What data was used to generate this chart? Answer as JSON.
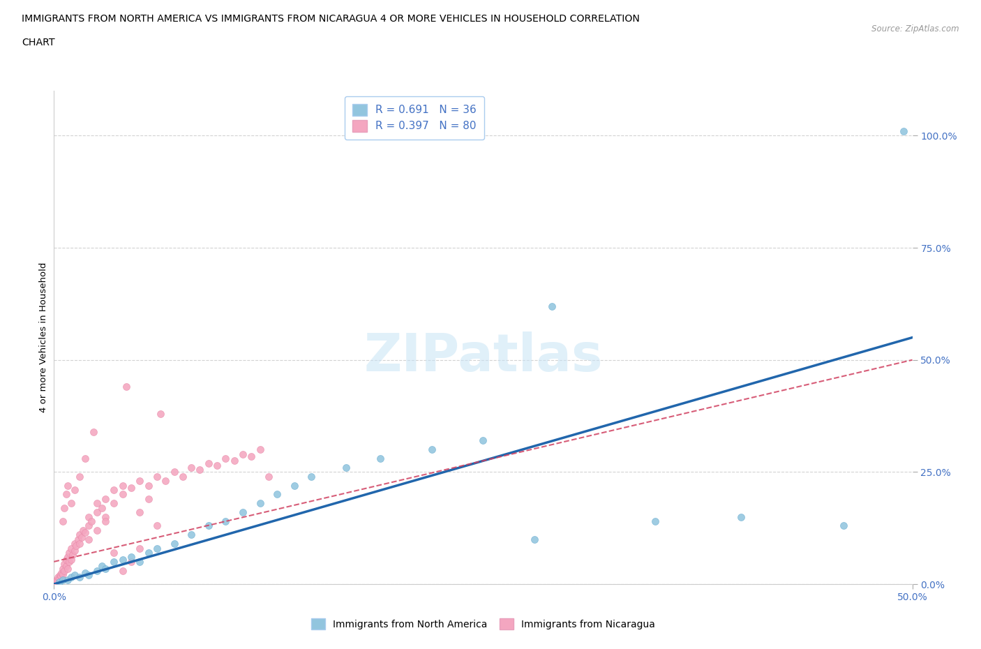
{
  "title_line1": "IMMIGRANTS FROM NORTH AMERICA VS IMMIGRANTS FROM NICARAGUA 4 OR MORE VEHICLES IN HOUSEHOLD CORRELATION",
  "title_line2": "CHART",
  "source": "Source: ZipAtlas.com",
  "ylabel": "4 or more Vehicles in Household",
  "xlim": [
    0,
    50
  ],
  "ylim": [
    0,
    110
  ],
  "watermark": "ZIPatlas",
  "legend_r1": "R = 0.691",
  "legend_n1": "N = 36",
  "legend_r2": "R = 0.397",
  "legend_n2": "N = 80",
  "blue_color": "#92c5de",
  "pink_color": "#f4a6c0",
  "blue_line_color": "#2166ac",
  "pink_line_color": "#d04060",
  "axis_color": "#4472c4",
  "grid_color": "#bbbbbb",
  "blue_scatter": [
    [
      0.3,
      0.5
    ],
    [
      0.5,
      1.0
    ],
    [
      0.8,
      1.0
    ],
    [
      1.0,
      1.5
    ],
    [
      1.2,
      2.0
    ],
    [
      1.5,
      1.5
    ],
    [
      1.8,
      2.5
    ],
    [
      2.0,
      2.0
    ],
    [
      2.5,
      3.0
    ],
    [
      2.8,
      4.0
    ],
    [
      3.0,
      3.5
    ],
    [
      3.5,
      5.0
    ],
    [
      4.0,
      5.5
    ],
    [
      4.5,
      6.0
    ],
    [
      5.0,
      5.0
    ],
    [
      5.5,
      7.0
    ],
    [
      6.0,
      8.0
    ],
    [
      7.0,
      9.0
    ],
    [
      8.0,
      11.0
    ],
    [
      9.0,
      13.0
    ],
    [
      10.0,
      14.0
    ],
    [
      11.0,
      16.0
    ],
    [
      12.0,
      18.0
    ],
    [
      13.0,
      20.0
    ],
    [
      14.0,
      22.0
    ],
    [
      15.0,
      24.0
    ],
    [
      17.0,
      26.0
    ],
    [
      19.0,
      28.0
    ],
    [
      22.0,
      30.0
    ],
    [
      25.0,
      32.0
    ],
    [
      28.0,
      10.0
    ],
    [
      35.0,
      14.0
    ],
    [
      40.0,
      15.0
    ],
    [
      46.0,
      13.0
    ],
    [
      49.5,
      101.0
    ],
    [
      29.0,
      62.0
    ]
  ],
  "pink_scatter": [
    [
      0.1,
      0.5
    ],
    [
      0.15,
      1.0
    ],
    [
      0.2,
      0.8
    ],
    [
      0.25,
      1.5
    ],
    [
      0.3,
      1.2
    ],
    [
      0.35,
      2.0
    ],
    [
      0.4,
      1.8
    ],
    [
      0.45,
      2.5
    ],
    [
      0.5,
      2.2
    ],
    [
      0.5,
      3.5
    ],
    [
      0.6,
      3.0
    ],
    [
      0.6,
      4.5
    ],
    [
      0.7,
      4.0
    ],
    [
      0.7,
      5.5
    ],
    [
      0.8,
      3.5
    ],
    [
      0.8,
      6.0
    ],
    [
      0.9,
      5.0
    ],
    [
      0.9,
      7.0
    ],
    [
      1.0,
      5.5
    ],
    [
      1.0,
      8.0
    ],
    [
      1.1,
      6.5
    ],
    [
      1.2,
      7.5
    ],
    [
      1.2,
      9.0
    ],
    [
      1.3,
      8.5
    ],
    [
      1.4,
      10.0
    ],
    [
      1.5,
      9.0
    ],
    [
      1.5,
      11.0
    ],
    [
      1.6,
      10.5
    ],
    [
      1.7,
      12.0
    ],
    [
      1.8,
      11.5
    ],
    [
      2.0,
      13.0
    ],
    [
      2.0,
      15.0
    ],
    [
      2.2,
      14.0
    ],
    [
      2.5,
      16.0
    ],
    [
      2.5,
      18.0
    ],
    [
      2.8,
      17.0
    ],
    [
      3.0,
      15.0
    ],
    [
      3.0,
      19.0
    ],
    [
      3.5,
      18.0
    ],
    [
      3.5,
      21.0
    ],
    [
      4.0,
      20.0
    ],
    [
      4.0,
      22.0
    ],
    [
      4.5,
      21.5
    ],
    [
      5.0,
      23.0
    ],
    [
      5.0,
      8.0
    ],
    [
      5.5,
      22.0
    ],
    [
      6.0,
      24.0
    ],
    [
      6.5,
      23.0
    ],
    [
      7.0,
      25.0
    ],
    [
      7.5,
      24.0
    ],
    [
      8.0,
      26.0
    ],
    [
      8.5,
      25.5
    ],
    [
      9.0,
      27.0
    ],
    [
      9.5,
      26.5
    ],
    [
      10.0,
      28.0
    ],
    [
      10.5,
      27.5
    ],
    [
      11.0,
      29.0
    ],
    [
      11.5,
      28.5
    ],
    [
      12.0,
      30.0
    ],
    [
      12.5,
      24.0
    ],
    [
      1.8,
      28.0
    ],
    [
      2.3,
      34.0
    ],
    [
      4.2,
      44.0
    ],
    [
      6.2,
      38.0
    ],
    [
      0.5,
      14.0
    ],
    [
      0.6,
      17.0
    ],
    [
      0.7,
      20.0
    ],
    [
      0.8,
      22.0
    ],
    [
      1.0,
      18.0
    ],
    [
      1.2,
      21.0
    ],
    [
      1.5,
      24.0
    ],
    [
      2.0,
      10.0
    ],
    [
      2.5,
      12.0
    ],
    [
      3.0,
      14.0
    ],
    [
      3.5,
      7.0
    ],
    [
      4.0,
      3.0
    ],
    [
      4.5,
      5.0
    ],
    [
      5.0,
      16.0
    ],
    [
      5.5,
      19.0
    ],
    [
      6.0,
      13.0
    ]
  ]
}
